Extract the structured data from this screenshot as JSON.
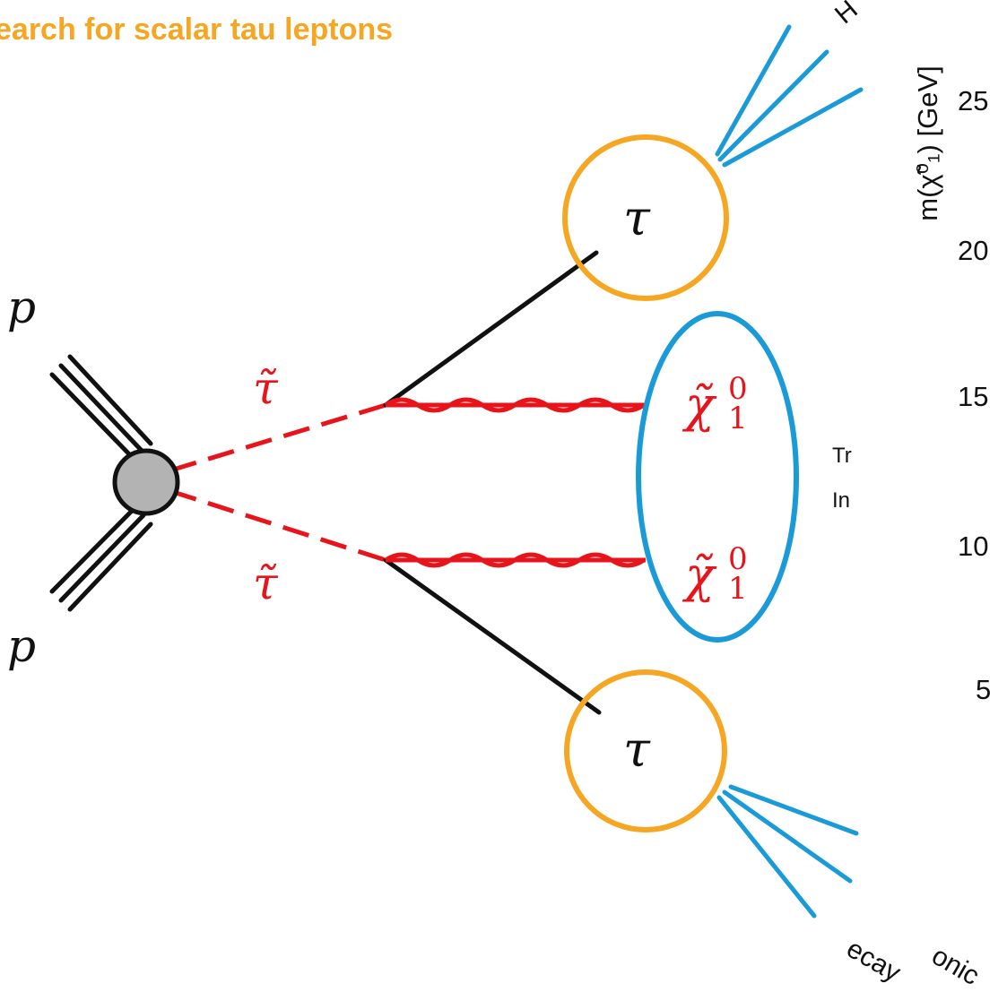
{
  "title": "earch for scalar tau leptons",
  "particles": {
    "proton": "p",
    "stau": "τ̃",
    "neutralino": "χ̃",
    "neutralino_sup": "0",
    "neutralino_sub": "1",
    "tau": "τ"
  },
  "side_labels": {
    "top_cut": "H",
    "truth_line1": "Tr",
    "truth_line2": "In",
    "bottom_part1": "ecay",
    "bottom_part2": "onic"
  },
  "axis": {
    "ylabel": "m(χ̃⁰₁) [GeV]",
    "ticks": [
      "25",
      "20",
      "15",
      "10",
      "5"
    ]
  },
  "colors": {
    "stau": "#e8141b",
    "tau_circle": "#f5a623",
    "met_ellipse": "#1a9ad6",
    "decay_lines": "#1a9ad6",
    "title": "#f5a623"
  }
}
